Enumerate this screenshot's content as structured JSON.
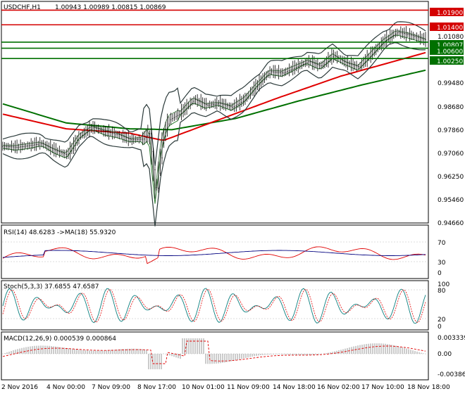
{
  "main": {
    "symbol_label": "USDCHF,H1",
    "ohlc_label": "1.00943 1.00989 1.00815 1.00869",
    "y_ticks": [
      "1.01080",
      "0.99480",
      "0.98680",
      "0.97860",
      "0.97060",
      "0.96250",
      "0.95460",
      "0.94660"
    ],
    "levels": [
      {
        "value": 1.019,
        "label": "1.01900",
        "color": "#d40000"
      },
      {
        "value": 1.014,
        "label": "1.01400",
        "color": "#d40000"
      },
      {
        "value": 1.00807,
        "label": "1.00807",
        "color": "#007000"
      },
      {
        "value": 1.006,
        "label": "1.00600",
        "color": "#007000"
      },
      {
        "value": 1.0025,
        "label": "1.00250",
        "color": "#007000"
      }
    ]
  },
  "rsi": {
    "label": "RSI(14) 48.6283  ->MA(18) 55.9320",
    "y_ticks": [
      "70",
      "30",
      "0"
    ]
  },
  "stoch": {
    "label": "Stoch(5,3,3) 37.6855 47.6587",
    "y_ticks": [
      "100",
      "80",
      "20",
      "0"
    ]
  },
  "macd": {
    "label": "MACD(12,26,9) 0.000539 0.000864",
    "y_ticks": [
      "0.003339",
      "0.00",
      "-0.003864"
    ]
  },
  "x_axis": {
    "labels": [
      "2 Nov 2016",
      "4 Nov 00:00",
      "7 Nov 09:00",
      "8 Nov 17:00",
      "10 Nov 01:00",
      "11 Nov 09:00",
      "14 Nov 18:00",
      "16 Nov 02:00",
      "17 Nov 10:00",
      "18 Nov 18:00"
    ]
  },
  "chart_data": {
    "type": "candlestick",
    "price_range": [
      0.9466,
      1.0215
    ],
    "price_series": [
      {
        "t": 0,
        "p": 0.9725
      },
      {
        "t": 0.03,
        "p": 0.9722
      },
      {
        "t": 0.06,
        "p": 0.9728
      },
      {
        "t": 0.09,
        "p": 0.9735
      },
      {
        "t": 0.12,
        "p": 0.9712
      },
      {
        "t": 0.15,
        "p": 0.9695
      },
      {
        "t": 0.18,
        "p": 0.976
      },
      {
        "t": 0.21,
        "p": 0.979
      },
      {
        "t": 0.24,
        "p": 0.9775
      },
      {
        "t": 0.27,
        "p": 0.9765
      },
      {
        "t": 0.3,
        "p": 0.9748
      },
      {
        "t": 0.33,
        "p": 0.975
      },
      {
        "t": 0.345,
        "p": 0.9775
      },
      {
        "t": 0.36,
        "p": 0.9555
      },
      {
        "t": 0.375,
        "p": 0.974
      },
      {
        "t": 0.39,
        "p": 0.9815
      },
      {
        "t": 0.42,
        "p": 0.984
      },
      {
        "t": 0.45,
        "p": 0.9885
      },
      {
        "t": 0.48,
        "p": 0.9865
      },
      {
        "t": 0.51,
        "p": 0.9872
      },
      {
        "t": 0.54,
        "p": 0.9858
      },
      {
        "t": 0.57,
        "p": 0.9885
      },
      {
        "t": 0.6,
        "p": 0.9935
      },
      {
        "t": 0.63,
        "p": 0.998
      },
      {
        "t": 0.66,
        "p": 0.9975
      },
      {
        "t": 0.69,
        "p": 0.9995
      },
      {
        "t": 0.72,
        "p": 1.0015
      },
      {
        "t": 0.75,
        "p": 0.9998
      },
      {
        "t": 0.78,
        "p": 1.0035
      },
      {
        "t": 0.81,
        "p": 1.001
      },
      {
        "t": 0.84,
        "p": 0.9995
      },
      {
        "t": 0.87,
        "p": 1.004
      },
      {
        "t": 0.9,
        "p": 1.0085
      },
      {
        "t": 0.93,
        "p": 1.0115
      },
      {
        "t": 0.96,
        "p": 1.0105
      },
      {
        "t": 1.0,
        "p": 1.0087
      }
    ],
    "moving_averages": [
      {
        "name": "green-slow",
        "color": "#007000",
        "points": [
          {
            "t": 0,
            "p": 0.987
          },
          {
            "t": 0.15,
            "p": 0.9805
          },
          {
            "t": 0.3,
            "p": 0.9785
          },
          {
            "t": 0.4,
            "p": 0.9782
          },
          {
            "t": 0.55,
            "p": 0.982
          },
          {
            "t": 0.7,
            "p": 0.988
          },
          {
            "t": 0.85,
            "p": 0.9935
          },
          {
            "t": 1.0,
            "p": 0.9985
          }
        ]
      },
      {
        "name": "red-mid",
        "color": "#e00000",
        "points": [
          {
            "t": 0,
            "p": 0.9835
          },
          {
            "t": 0.15,
            "p": 0.9785
          },
          {
            "t": 0.3,
            "p": 0.977
          },
          {
            "t": 0.38,
            "p": 0.9745
          },
          {
            "t": 0.5,
            "p": 0.981
          },
          {
            "t": 0.65,
            "p": 0.989
          },
          {
            "t": 0.8,
            "p": 0.9965
          },
          {
            "t": 1.0,
            "p": 1.0045
          }
        ]
      }
    ]
  }
}
